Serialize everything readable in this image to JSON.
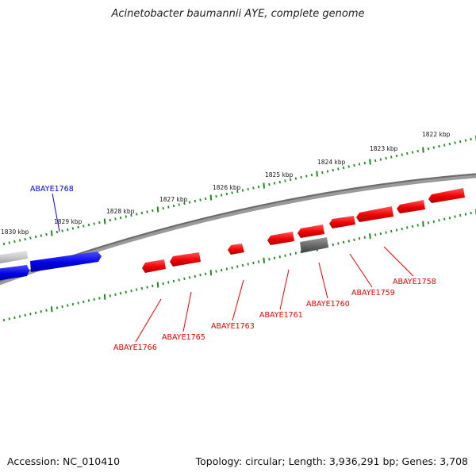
{
  "title": "Acinetobacter baumannii AYE, complete genome",
  "footer": {
    "accession": "Accession: NC_010410",
    "stats": "Topology: circular; Length: 3,936,291 bp; Genes: 3,708"
  },
  "scale_labels": [
    "1822 kbp",
    "1823 kbp",
    "1824 kbp",
    "1825 kbp",
    "1826 kbp",
    "1827 kbp",
    "1828 kbp",
    "1829 kbp",
    "1830 kbp"
  ],
  "genes": [
    {
      "name": "ABAYE1768",
      "strand": "forward",
      "color": "#0000ee"
    },
    {
      "name": "ABAYE1766",
      "strand": "reverse",
      "color": "#ee0000"
    },
    {
      "name": "ABAYE1765",
      "strand": "reverse",
      "color": "#ee0000"
    },
    {
      "name": "ABAYE1763",
      "strand": "reverse",
      "color": "#ee0000"
    },
    {
      "name": "ABAYE1761",
      "strand": "reverse",
      "color": "#ee0000"
    },
    {
      "name": "ABAYE1760",
      "strand": "reverse",
      "color": "#ee0000"
    },
    {
      "name": "ABAYE1759",
      "strand": "reverse",
      "color": "#ee0000"
    },
    {
      "name": "ABAYE1758",
      "strand": "reverse",
      "color": "#ee0000"
    }
  ],
  "colors": {
    "forward": "#0000ee",
    "reverse": "#ee0000",
    "unlabeled": "#666666",
    "ticks": "#228822",
    "backbone": "#777777"
  }
}
